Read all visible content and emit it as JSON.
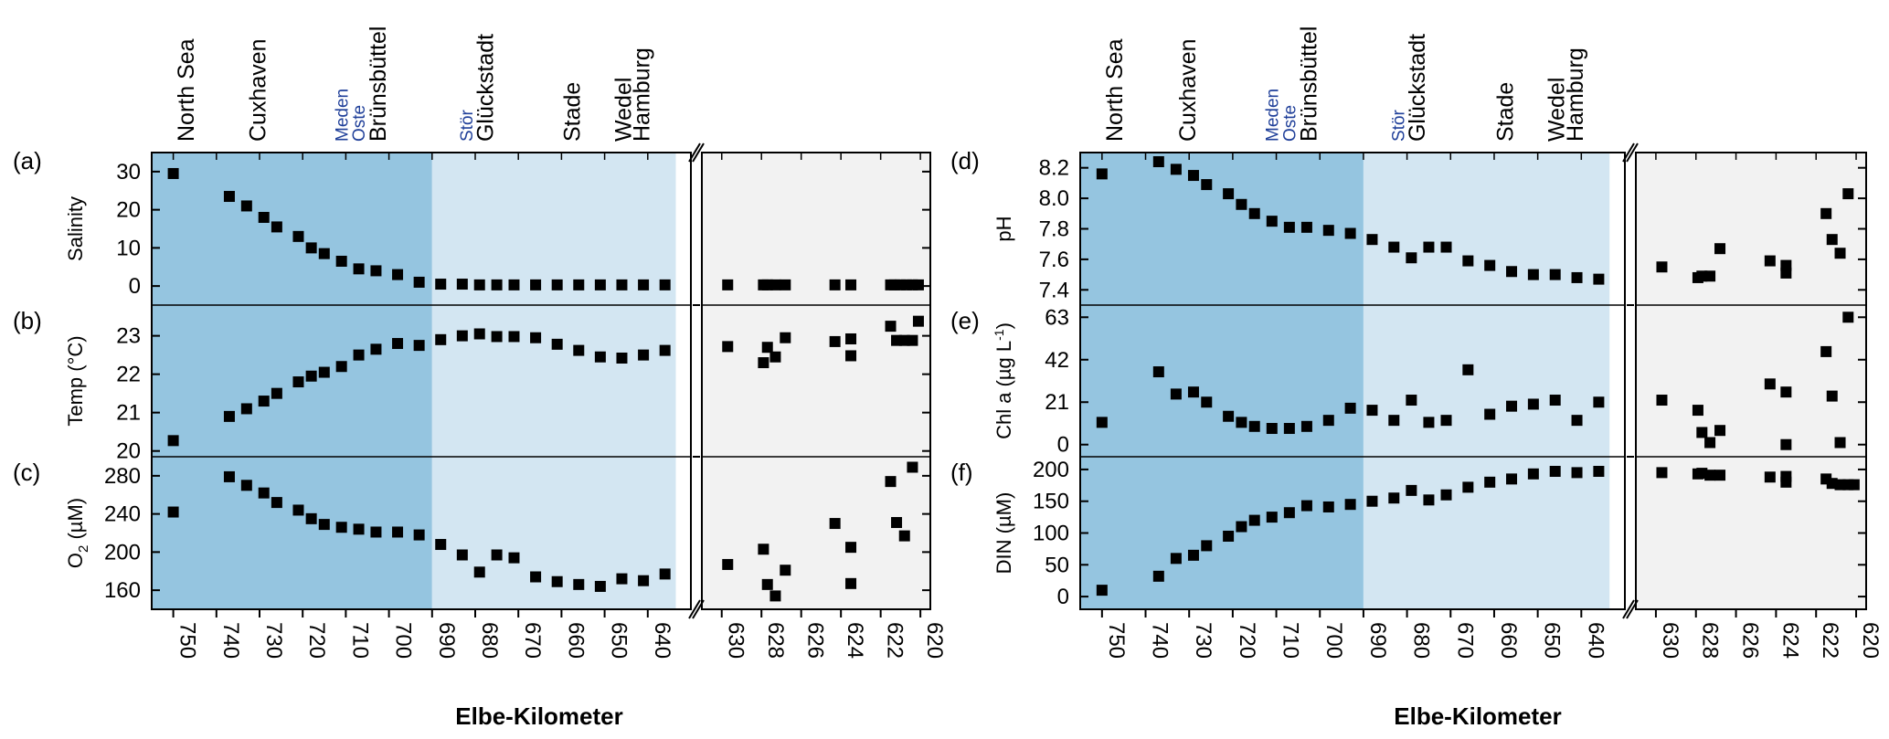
{
  "colors": {
    "marine": "#95c5e0",
    "mixing": "#d3e6f2",
    "fresh": "#f2f2f2",
    "marker": "#000000"
  },
  "chart_data": [
    {
      "type": "scatter",
      "panel_labels": [
        "(a)",
        "(b)",
        "(c)"
      ],
      "xlabel": "Elbe-Kilometer",
      "x_ticks_main": [
        "750",
        "740",
        "730",
        "720",
        "710",
        "700",
        "690",
        "680",
        "670",
        "660",
        "650",
        "640"
      ],
      "x_ticks_broken": [
        "630",
        "628",
        "626",
        "624",
        "622",
        "620"
      ],
      "x_break": "broken axis: 755–630 left segment, 631–619.5 right segment (reversed)",
      "locations": [
        "North Sea",
        "Cuxhaven",
        "Meden",
        "Oste",
        "Brünsbüttel",
        "Stör",
        "Glückstadt",
        "Stade",
        "Wedel",
        "Hamburg"
      ],
      "tributaries": [
        "Meden",
        "Oste",
        "Stör"
      ],
      "panels": [
        {
          "id": "a",
          "ylabel": "Salinity",
          "ylim": [
            -5,
            35
          ],
          "yticks": [
            "30",
            "20",
            "10",
            "0"
          ],
          "x": [
            750,
            737,
            733,
            729,
            726,
            721,
            718,
            715,
            711,
            707,
            703,
            698,
            693,
            688,
            683,
            679,
            675,
            671,
            666,
            661,
            656,
            651,
            646,
            641,
            636,
            629.7,
            627.9,
            627.7,
            627.3,
            626.8,
            624.3,
            623.5,
            621.5,
            621.3,
            621.0,
            620.7,
            620.4,
            620.1
          ],
          "y": [
            29.5,
            23.5,
            21,
            18,
            15.5,
            13,
            10,
            8.5,
            6.5,
            4.5,
            4,
            3,
            1,
            0.5,
            0.5,
            0.3,
            0.3,
            0.3,
            0.3,
            0.3,
            0.3,
            0.3,
            0.3,
            0.3,
            0.3,
            0.3,
            0.3,
            0.3,
            0.3,
            0.3,
            0.3,
            0.3,
            0.3,
            0.3,
            0.3,
            0.3,
            0.3,
            0.3
          ]
        },
        {
          "id": "b",
          "ylabel": "Temp (°C)",
          "ylim": [
            19.85,
            23.8
          ],
          "yticks": [
            "23",
            "22",
            "21",
            "20"
          ],
          "x": [
            750,
            737,
            733,
            729,
            726,
            721,
            718,
            715,
            711,
            707,
            703,
            698,
            693,
            688,
            683,
            679,
            675,
            671,
            666,
            661,
            656,
            651,
            646,
            641,
            636,
            629.7,
            627.9,
            627.7,
            627.3,
            626.8,
            624.3,
            623.5,
            623.5,
            621.5,
            621.2,
            620.8,
            620.4,
            620.1
          ],
          "y": [
            20.27,
            20.9,
            21.1,
            21.3,
            21.5,
            21.8,
            21.95,
            22.05,
            22.2,
            22.5,
            22.65,
            22.8,
            22.75,
            22.9,
            23.0,
            23.05,
            22.98,
            22.98,
            22.95,
            22.78,
            22.62,
            22.45,
            22.42,
            22.5,
            22.62,
            22.72,
            22.3,
            22.7,
            22.45,
            22.95,
            22.85,
            22.92,
            22.48,
            23.25,
            22.88,
            22.88,
            22.88,
            23.38
          ]
        },
        {
          "id": "c",
          "ylabel": "O2 (µM)",
          "ylim": [
            140,
            300
          ],
          "yticks": [
            "280",
            "240",
            "200",
            "160"
          ],
          "x": [
            750,
            737,
            733,
            729,
            726,
            721,
            718,
            715,
            711,
            707,
            703,
            698,
            693,
            688,
            683,
            679,
            675,
            671,
            666,
            661,
            656,
            651,
            646,
            641,
            636,
            629.7,
            627.9,
            627.7,
            627.3,
            626.8,
            624.3,
            623.5,
            623.5,
            621.5,
            621.2,
            620.8,
            620.4
          ],
          "y": [
            242,
            279,
            270,
            262,
            252,
            244,
            235,
            229,
            226,
            224,
            221,
            221,
            218,
            208,
            197,
            179,
            197,
            194,
            174,
            169,
            166,
            164,
            172,
            170,
            177,
            187,
            203,
            166,
            154,
            181,
            230,
            205,
            167,
            274,
            231,
            217,
            289
          ]
        }
      ]
    },
    {
      "type": "scatter",
      "panel_labels": [
        "(d)",
        "(e)",
        "(f)"
      ],
      "xlabel": "Elbe-Kilometer",
      "x_ticks_main": [
        "750",
        "740",
        "730",
        "720",
        "710",
        "700",
        "690",
        "680",
        "670",
        "660",
        "650",
        "640"
      ],
      "x_ticks_broken": [
        "630",
        "628",
        "626",
        "624",
        "622",
        "620"
      ],
      "locations": [
        "North Sea",
        "Cuxhaven",
        "Meden",
        "Oste",
        "Brünsbüttel",
        "Stör",
        "Glückstadt",
        "Stade",
        "Wedel",
        "Hamburg"
      ],
      "tributaries": [
        "Meden",
        "Oste",
        "Stör"
      ],
      "panels": [
        {
          "id": "d",
          "ylabel": "pH",
          "ylim": [
            7.3,
            8.3
          ],
          "yticks": [
            "8.2",
            "8.0",
            "7.8",
            "7.6",
            "7.4"
          ],
          "x": [
            750,
            737,
            733,
            729,
            726,
            721,
            718,
            715,
            711,
            707,
            703,
            698,
            693,
            688,
            683,
            679,
            675,
            671,
            666,
            661,
            656,
            651,
            646,
            641,
            636,
            629.7,
            627.9,
            627.7,
            627.3,
            626.8,
            624.3,
            623.5,
            623.5,
            621.5,
            621.2,
            620.8,
            620.4
          ],
          "y": [
            8.16,
            8.24,
            8.19,
            8.15,
            8.09,
            8.03,
            7.96,
            7.9,
            7.85,
            7.81,
            7.81,
            7.79,
            7.77,
            7.73,
            7.68,
            7.61,
            7.68,
            7.68,
            7.59,
            7.56,
            7.52,
            7.5,
            7.5,
            7.48,
            7.47,
            7.55,
            7.48,
            7.49,
            7.49,
            7.67,
            7.59,
            7.56,
            7.51,
            7.9,
            7.73,
            7.64,
            8.03
          ]
        },
        {
          "id": "e",
          "ylabel": "Chl a (µg L-1)",
          "ylim": [
            -6,
            69
          ],
          "yticks": [
            "63",
            "42",
            "21",
            "0"
          ],
          "x": [
            750,
            737,
            733,
            729,
            726,
            721,
            718,
            715,
            711,
            707,
            703,
            698,
            693,
            688,
            683,
            679,
            675,
            671,
            666,
            661,
            656,
            651,
            646,
            641,
            636,
            629.7,
            627.9,
            627.7,
            627.3,
            626.8,
            624.3,
            623.5,
            623.5,
            621.5,
            621.2,
            620.8,
            620.4
          ],
          "y": [
            11,
            36,
            25,
            26,
            21,
            14,
            11,
            9,
            8,
            8,
            9,
            12,
            18,
            17,
            12,
            22,
            11,
            12,
            37,
            15,
            19,
            20,
            22,
            12,
            21,
            22,
            17,
            6,
            1,
            7,
            30,
            26,
            0,
            46,
            24,
            1,
            63
          ]
        },
        {
          "id": "f",
          "ylabel": "DIN (µM)",
          "ylim": [
            -20,
            220
          ],
          "yticks": [
            "200",
            "150",
            "100",
            "50",
            "0"
          ],
          "x": [
            750,
            737,
            733,
            729,
            726,
            721,
            718,
            715,
            711,
            707,
            703,
            698,
            693,
            688,
            683,
            679,
            675,
            671,
            666,
            661,
            656,
            651,
            646,
            641,
            636,
            629.7,
            627.9,
            627.7,
            627.3,
            626.8,
            624.3,
            623.5,
            623.5,
            621.5,
            621.2,
            620.8,
            620.4,
            620.1
          ],
          "y": [
            10,
            32,
            60,
            65,
            80,
            95,
            110,
            120,
            125,
            132,
            143,
            141,
            145,
            150,
            155,
            167,
            152,
            160,
            172,
            180,
            185,
            193,
            197,
            195,
            197,
            195,
            193,
            194,
            191,
            191,
            188,
            189,
            180,
            185,
            178,
            176,
            176,
            176
          ]
        }
      ]
    }
  ]
}
